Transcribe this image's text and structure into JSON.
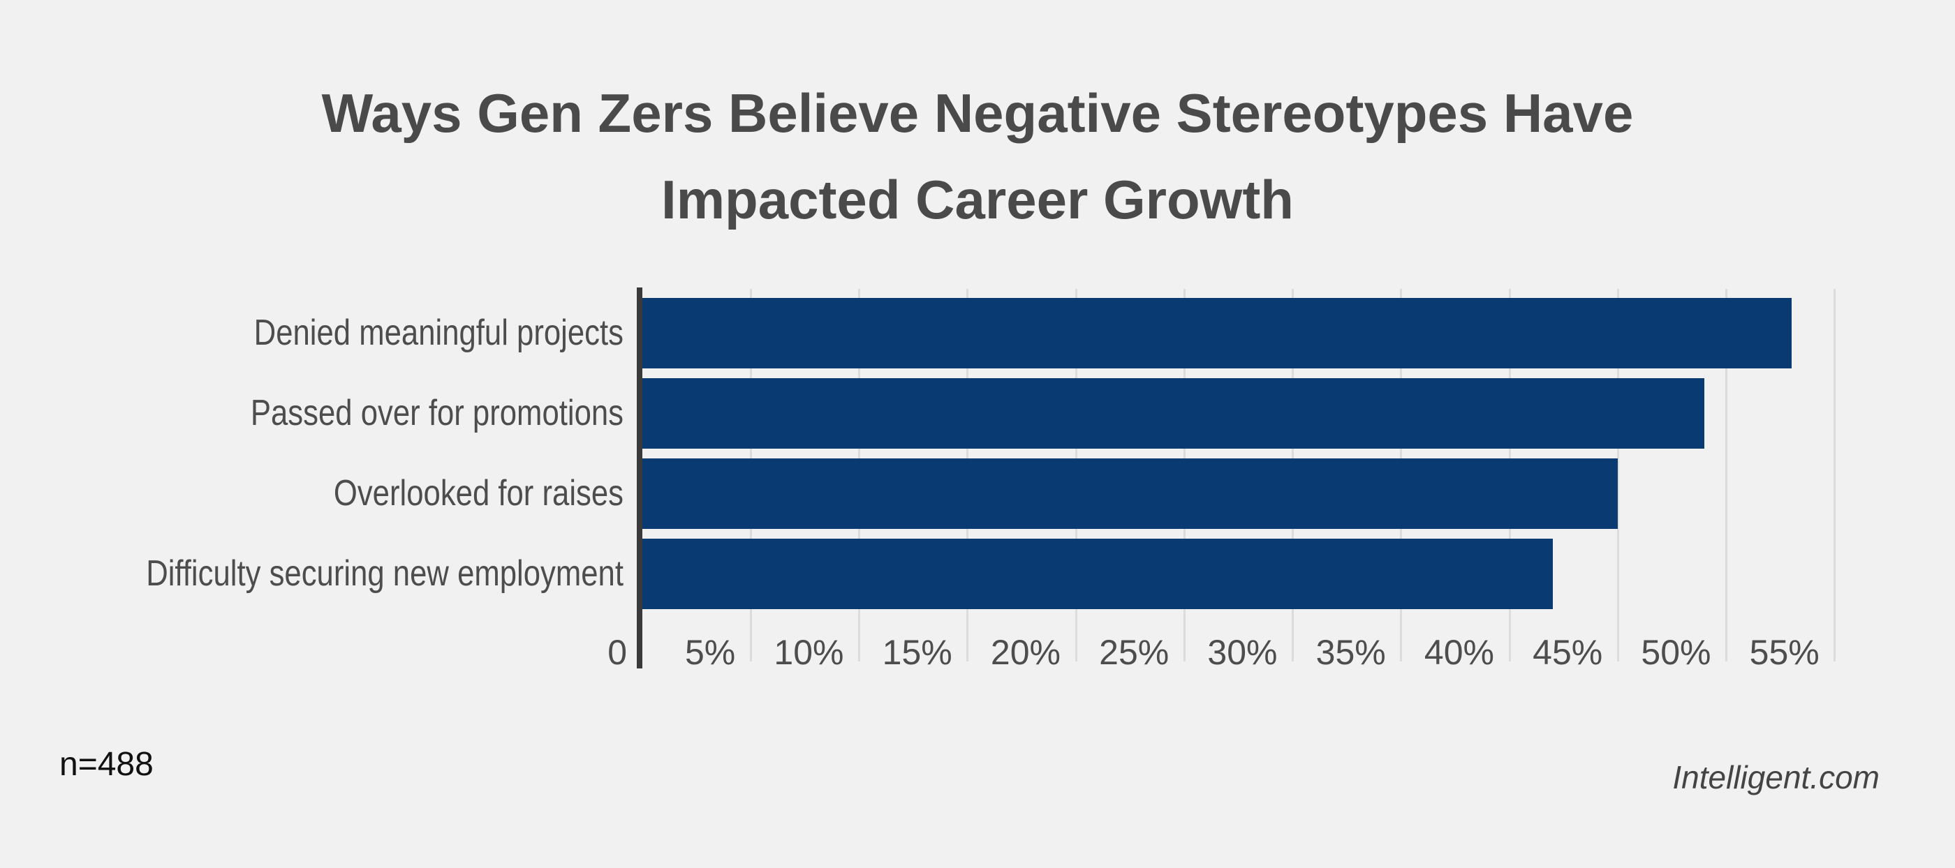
{
  "header": {
    "title_line1": "Ways Gen Zers Believe Negative Stereotypes Have",
    "title_line2": "Impacted Career Growth"
  },
  "footer": {
    "sample_size": "n=488",
    "source": "Intelligent.com"
  },
  "chart_data": {
    "type": "bar",
    "orientation": "horizontal",
    "title": "Ways Gen Zers Believe Negative Stereotypes Have Impacted Career Growth",
    "categories": [
      "Denied meaningful projects",
      "Passed over for promotions",
      "Overlooked for raises",
      "Difficulty securing new employment"
    ],
    "values": [
      53,
      49,
      45,
      42
    ],
    "unit": "%",
    "xlabel": "",
    "ylabel": "",
    "xlim": [
      0,
      57.3
    ],
    "grid": true,
    "legend": false,
    "x_axis": {
      "ticks": [
        {
          "label": "0",
          "value": 0
        },
        {
          "label": "5%",
          "value": 5
        },
        {
          "label": "10%",
          "value": 10
        },
        {
          "label": "15%",
          "value": 15
        },
        {
          "label": "20%",
          "value": 20
        },
        {
          "label": "25%",
          "value": 25
        },
        {
          "label": "30%",
          "value": 30
        },
        {
          "label": "35%",
          "value": 35
        },
        {
          "label": "40%",
          "value": 40
        },
        {
          "label": "45%",
          "value": 45
        },
        {
          "label": "50%",
          "value": 50
        },
        {
          "label": "55%",
          "value": 55
        }
      ]
    },
    "colors": {
      "bar": "#0a3a72",
      "background": "#f1f1f1",
      "gridline": "#dcdcdc",
      "axis_line": "#3a3a3a",
      "title_text": "#4a4a4a",
      "label_text": "#4d4d4d",
      "note_text": "#111111",
      "source_text": "#444444"
    }
  }
}
